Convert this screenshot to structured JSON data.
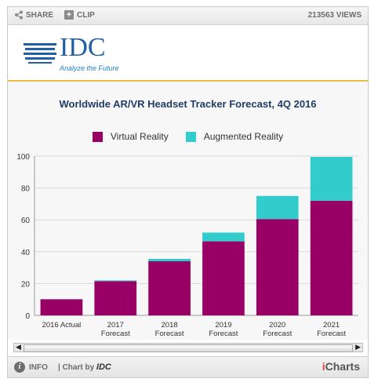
{
  "toolbar": {
    "share_label": "SHARE",
    "clip_label": "CLIP",
    "views_label": "213563 VIEWS"
  },
  "logo": {
    "name": "IDC",
    "tagline": "Analyze the Future"
  },
  "footer": {
    "info_label": "INFO",
    "chart_by_label": "| Chart by",
    "chart_by_brand": "IDC",
    "brand": "iCharts"
  },
  "colors": {
    "virtual_reality": "#990066",
    "augmented_reality": "#33cccc",
    "title": "#1f3d66",
    "accent_rule": "#f0b847"
  },
  "chart_data": {
    "type": "bar",
    "stacked": true,
    "title": "Worldwide AR/VR Headset Tracker Forecast, 4Q 2016",
    "xlabel": "",
    "ylabel": "",
    "ylim": [
      0,
      100
    ],
    "yticks": [
      0,
      20,
      40,
      60,
      80,
      100
    ],
    "grid": true,
    "legend_position": "top",
    "categories": [
      "2016 Actual",
      "2017 Forecast",
      "2018 Forecast",
      "2019 Forecast",
      "2020 Forecast",
      "2021 Forecast"
    ],
    "series": [
      {
        "name": "Virtual Reality",
        "color": "#990066",
        "values": [
          10.1,
          21.5,
          34,
          46.5,
          60.5,
          72
        ]
      },
      {
        "name": "Augmented Reality",
        "color": "#33cccc",
        "values": [
          0.1,
          0.5,
          1.5,
          5.5,
          14.5,
          27.5
        ]
      }
    ]
  }
}
